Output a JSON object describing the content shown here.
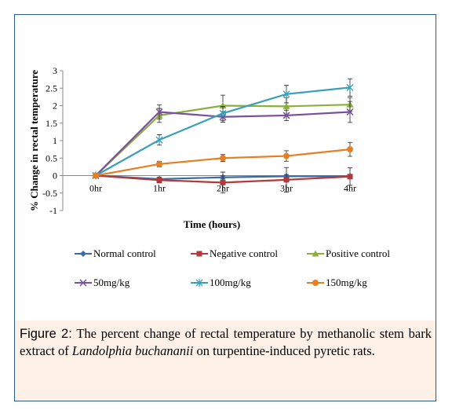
{
  "chart_data": {
    "type": "line",
    "categories": [
      "0hr",
      "1hr",
      "2hr",
      "3hr",
      "4hr"
    ],
    "xlabel": "Time (hours)",
    "ylabel": "% Change in rectal temperature",
    "ylim": [
      -1,
      3
    ],
    "yticks": [
      "3",
      "2.5",
      "2",
      "1.5",
      "1",
      "0.5",
      "0",
      "-0.5",
      "-1"
    ],
    "grid": false,
    "legend_position": "bottom",
    "series": [
      {
        "name": "Normal control",
        "color": "#3c6aa8",
        "marker": "diamond",
        "values": [
          0,
          -0.1,
          -0.05,
          -0.02,
          -0.02
        ],
        "errors": [
          0,
          0.05,
          0.05,
          0.05,
          0.05
        ]
      },
      {
        "name": "Negative control",
        "color": "#b33a3a",
        "marker": "square",
        "values": [
          0,
          -0.13,
          -0.2,
          -0.12,
          -0.03
        ],
        "errors": [
          0,
          0.08,
          0.3,
          0.35,
          0.25
        ]
      },
      {
        "name": "Positive control",
        "color": "#8cae3e",
        "marker": "triangle",
        "values": [
          0,
          1.72,
          2.0,
          1.98,
          2.03
        ],
        "errors": [
          0,
          0.2,
          0.3,
          0.25,
          0.2
        ]
      },
      {
        "name": "50mg/kg",
        "color": "#7a4f9c",
        "marker": "x",
        "values": [
          0,
          1.82,
          1.68,
          1.72,
          1.82
        ],
        "errors": [
          0,
          0.2,
          0.15,
          0.15,
          0.3
        ]
      },
      {
        "name": "100mg/kg",
        "color": "#3aa0b8",
        "marker": "star",
        "values": [
          0,
          1.02,
          1.78,
          2.33,
          2.52
        ],
        "errors": [
          0,
          0.15,
          0.2,
          0.25,
          0.25
        ]
      },
      {
        "name": "150mg/kg",
        "color": "#e67e22",
        "marker": "circle",
        "values": [
          0,
          0.33,
          0.5,
          0.56,
          0.75
        ],
        "errors": [
          0,
          0.08,
          0.1,
          0.15,
          0.2
        ]
      }
    ]
  },
  "caption": {
    "lead": "Figure 2:",
    "text_before": " The percent change of rectal temperature by methanolic stem bark extract of ",
    "species": "Landolphia buchananii",
    "text_after": " on turpentine-induced pyretic rats."
  }
}
